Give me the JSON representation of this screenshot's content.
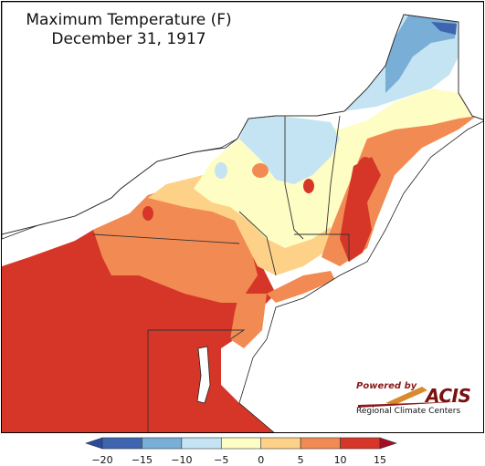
{
  "title": {
    "line1": "Maximum Temperature (F)",
    "line2": "December 31, 1917"
  },
  "logo": {
    "powered_by": "Powered by",
    "brand": "ACIS",
    "subtitle": "Regional Climate Centers"
  },
  "legend": {
    "bins": [
      {
        "min": -20,
        "max": -15,
        "color": "#3f64b0"
      },
      {
        "min": -15,
        "max": -10,
        "color": "#79aed6"
      },
      {
        "min": -10,
        "max": -5,
        "color": "#c5e4f3"
      },
      {
        "min": -5,
        "max": 0,
        "color": "#fdfdc4"
      },
      {
        "min": 0,
        "max": 5,
        "color": "#fdd188"
      },
      {
        "min": 5,
        "max": 10,
        "color": "#f28b53"
      },
      {
        "min": 10,
        "max": 15,
        "color": "#d63628"
      }
    ],
    "below_color": "#2b4a9c",
    "above_color": "#a50f26",
    "ticks": [
      "−20",
      "−15",
      "−10",
      "−5",
      "0",
      "5",
      "10",
      "15"
    ]
  },
  "colors": {
    "water": "#ffffff",
    "land_hot": "#c62a26",
    "boundary": "#444444"
  }
}
